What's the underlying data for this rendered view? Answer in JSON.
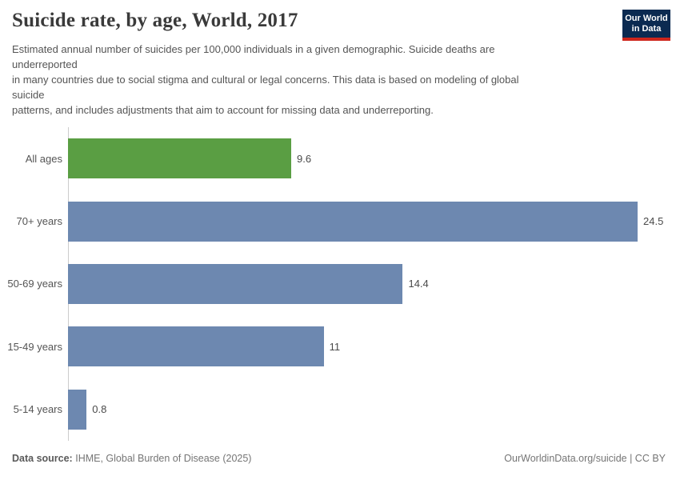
{
  "header": {
    "title": "Suicide rate, by age, World, 2017",
    "subtitle_lines": [
      "Estimated annual number of suicides per 100,000 individuals in a given demographic. Suicide deaths are",
      "underreported",
      "in many countries due to social stigma and cultural or legal concerns. This data is based on modeling of global",
      "suicide",
      "patterns, and includes adjustments that aim to account for missing data and underreporting."
    ]
  },
  "logo": {
    "line1": "Our World",
    "line2": "in Data",
    "background_color": "#0b2a51",
    "accent_color": "#ce261c"
  },
  "chart_data": {
    "type": "bar",
    "orientation": "horizontal",
    "title": "Suicide rate, by age, World, 2017",
    "categories": [
      "All ages",
      "70+ years",
      "50-69 years",
      "15-49 years",
      "5-14 years"
    ],
    "values": [
      9.6,
      24.5,
      14.4,
      11,
      0.8
    ],
    "value_labels": [
      "9.6",
      "24.5",
      "14.4",
      "11",
      "0.8"
    ],
    "bar_colors": [
      "#5a9e43",
      "#6d88b0",
      "#6d88b0",
      "#6d88b0",
      "#6d88b0"
    ],
    "xlim": [
      0,
      25.8
    ],
    "grid": false,
    "legend": false,
    "axis_color": "#cccccc"
  },
  "footer": {
    "source_label": "Data source:",
    "source_text": "IHME, Global Burden of Disease (2025)",
    "credit": "OurWorldinData.org/suicide | CC BY"
  }
}
